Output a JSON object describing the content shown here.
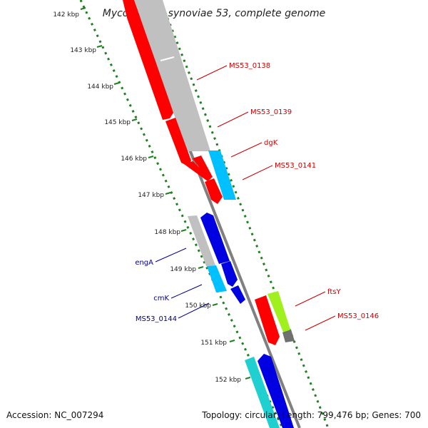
{
  "title": "Mycoplasma synoviae 53, complete genome",
  "footer": {
    "accession": "Accession: NC_007294",
    "summary": "Topology: circular; Length: 799,476 bp; Genes: 700"
  },
  "colors": {
    "red_gene": "#ff0000",
    "gray_gene": "#c0c0c0",
    "light_blue_gene": "#00c0ff",
    "blue_gene": "#0000e0",
    "cyan_gene": "#20d0d0",
    "yellow_green_gene": "#a0f020",
    "dark_gray_gene": "#707070",
    "backbone": "#808080",
    "tick": "#208020",
    "label_red": "#cc0000",
    "label_blue": "#00008b"
  },
  "ticks": [
    "142 kbp",
    "143 kbp",
    "144 kbp",
    "145 kbp",
    "146 kbp",
    "147 kbp",
    "148 kbp",
    "149 kbp",
    "150 kbp",
    "151 kbp",
    "152 kbp"
  ],
  "gene_labels": {
    "ms53_0138": "MS53_0138",
    "ms53_0139": "MS53_0139",
    "dgk": "dgK",
    "ms53_0141": "MS53_0141",
    "engA": "engA",
    "cmk": "cmK",
    "ms53_0144": "MS53_0144",
    "ftsY": "ftsY",
    "ms53_0146": "MS53_0146"
  }
}
